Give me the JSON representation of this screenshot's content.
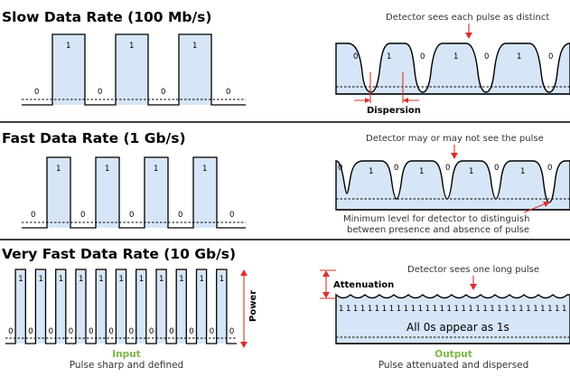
{
  "sections": [
    {
      "title": "Slow Data Rate (100 Mb/s)",
      "input_bits": [
        "0",
        "1",
        "0",
        "1",
        "0",
        "1",
        "0"
      ],
      "output_bits": [
        "0",
        "1",
        "0",
        "1",
        "0",
        "1",
        "0"
      ],
      "detector_note": "Detector sees each pulse as distinct",
      "spread_label": "Dispersion"
    },
    {
      "title": "Fast Data Rate (1 Gb/s)",
      "input_bits": [
        "0",
        "1",
        "0",
        "1",
        "0",
        "1",
        "0",
        "1",
        "0"
      ],
      "output_bits": [
        "0",
        "1",
        "0",
        "1",
        "0",
        "1",
        "0",
        "1",
        "0"
      ],
      "detector_note": "Detector may or may not see the pulse",
      "threshold_note_line1": "Minimum level for detector to distinguish",
      "threshold_note_line2": "between presence and absence of pulse"
    },
    {
      "title": "Very Fast Data Rate (10 Gb/s)",
      "input_bits": [
        "0",
        "1",
        "0",
        "1",
        "0",
        "1",
        "0",
        "1",
        "0",
        "1",
        "0",
        "1",
        "0",
        "1",
        "0",
        "1",
        "0",
        "1",
        "0",
        "1",
        "0",
        "1",
        "0"
      ],
      "output_ones": [
        "1",
        "1",
        "1",
        "1",
        "1",
        "1",
        "1",
        "1",
        "1",
        "1",
        "1",
        "1",
        "1",
        "1",
        "1",
        "1",
        "1",
        "1",
        "1",
        "1",
        "1",
        "1",
        "1",
        "1",
        "1",
        "1",
        "1",
        "1",
        "1",
        "1",
        "1",
        "1"
      ],
      "detector_note": "Detector sees one long pulse",
      "attenuation_label": "Attenuation",
      "output_caption": "All 0s appear as 1s",
      "power_label": "Power"
    }
  ],
  "footer": {
    "input_title": "Input",
    "input_subtitle": "Pulse sharp and defined",
    "output_title": "Output",
    "output_subtitle": "Pulse attenuated and dispersed"
  },
  "colors": {
    "pulse_fill": "#d6e6f6",
    "annotation_red": "#d9302c",
    "footer_green": "#7cb648"
  }
}
